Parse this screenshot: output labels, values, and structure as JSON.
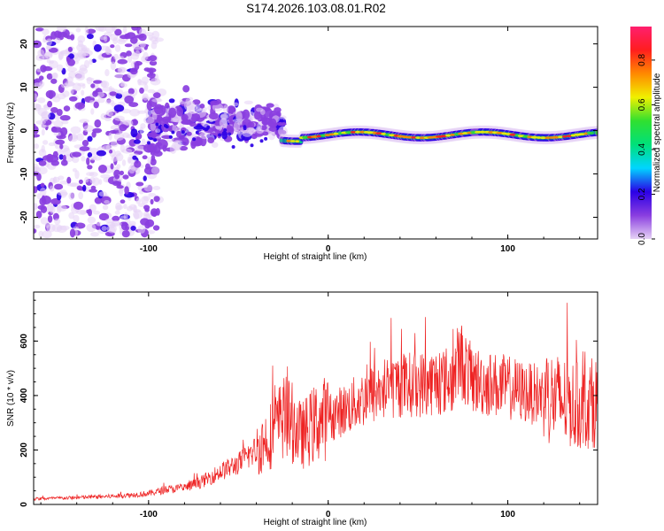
{
  "title": "S174.2026.103.08.01.R02",
  "colors": {
    "background": "#ffffff",
    "axis": "#000000",
    "snr_line": "#ee2222",
    "colorbar_stops": [
      "#e6d2f5",
      "#8a3ee0",
      "#2b00e6",
      "#00d5ff",
      "#00e07a",
      "#30e030",
      "#f0f000",
      "#ff8a00",
      "#ff1e1e",
      "#ff1f6e"
    ]
  },
  "chart_data": [
    {
      "type": "heatmap",
      "title": "",
      "xlabel": "Height of straight line (km)",
      "ylabel": "Frequency (Hz)",
      "xlim": [
        -164,
        150
      ],
      "ylim": [
        -25,
        24
      ],
      "xticks": [
        -100,
        0,
        100
      ],
      "yticks": [
        -20,
        -10,
        0,
        10,
        20
      ],
      "colorbar": {
        "label": "Normalized spectral amplitude",
        "range": [
          0,
          0.95
        ],
        "ticks": [
          "0.0",
          "0.2",
          "0.4",
          "0.6",
          "0.8"
        ]
      },
      "description_regions": [
        {
          "x_range": [
            -164,
            -100
          ],
          "freq_spread": 24,
          "amplitude": "low, scattered"
        },
        {
          "x_range": [
            -110,
            -25
          ],
          "freq_spread": 12,
          "amplitude": "low to medium, scattered blobs"
        },
        {
          "x_range": [
            -25,
            150
          ],
          "freq_center": -1,
          "freq_spread": 3,
          "amplitude": "high, narrow band peaking ~0.95"
        }
      ]
    },
    {
      "type": "line",
      "title": "",
      "xlabel": "Height of straight line (km)",
      "ylabel": "SNR (10 * v/v)",
      "xlim": [
        -164,
        150
      ],
      "ylim": [
        0,
        780
      ],
      "xticks": [
        -100,
        0,
        100
      ],
      "yticks": [
        0,
        200,
        400,
        600
      ],
      "series": [
        {
          "name": "SNR",
          "x": [
            -164,
            -140,
            -120,
            -100,
            -90,
            -80,
            -70,
            -60,
            -50,
            -40,
            -30,
            -25,
            -20,
            -15,
            -10,
            -5,
            0,
            10,
            20,
            30,
            40,
            50,
            60,
            70,
            73,
            80,
            90,
            100,
            110,
            120,
            130,
            140,
            150
          ],
          "values": [
            20,
            25,
            30,
            40,
            55,
            60,
            85,
            120,
            150,
            200,
            270,
            320,
            300,
            250,
            280,
            310,
            320,
            350,
            390,
            420,
            440,
            440,
            450,
            460,
            540,
            460,
            440,
            430,
            410,
            400,
            380,
            360,
            380
          ]
        }
      ]
    }
  ]
}
